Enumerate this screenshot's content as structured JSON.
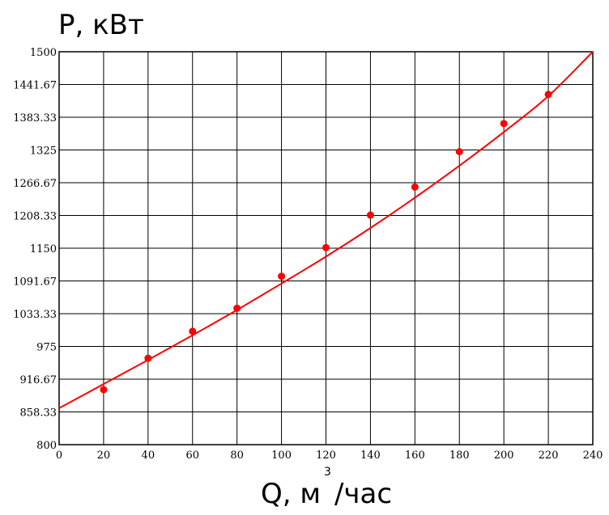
{
  "chart_data": {
    "type": "scatter",
    "ylabel": "P, кВт",
    "xlabel_main": "Q, м",
    "xlabel_sup": "3",
    "xlabel_tail": "/час",
    "xlim": [
      0,
      240
    ],
    "ylim": [
      800,
      1500
    ],
    "x_ticks": [
      "0",
      "20",
      "40",
      "60",
      "80",
      "100",
      "120",
      "140",
      "160",
      "180",
      "200",
      "220",
      "240"
    ],
    "y_ticks": [
      "800",
      "858.33",
      "916.67",
      "975",
      "1033.33",
      "1091.67",
      "1150",
      "1208.33",
      "1266.67",
      "1325",
      "1383.33",
      "1441.67",
      "1500"
    ],
    "grid": true,
    "colors": {
      "series": "#ff0000",
      "grid": "#000000"
    },
    "series": [
      {
        "type": "scatter",
        "x": [
          20,
          40,
          60,
          80,
          100,
          120,
          140,
          160,
          180,
          200,
          220
        ],
        "y": [
          898,
          954,
          1002,
          1043,
          1100,
          1151,
          1209,
          1259,
          1322,
          1372,
          1424
        ]
      },
      {
        "type": "line",
        "x": [
          0,
          20,
          40,
          60,
          80,
          100,
          120,
          140,
          160,
          180,
          200,
          220,
          240
        ],
        "y": [
          865,
          908,
          951,
          995,
          1040,
          1087,
          1135,
          1186,
          1240,
          1297,
          1357,
          1421,
          1500
        ]
      }
    ]
  }
}
